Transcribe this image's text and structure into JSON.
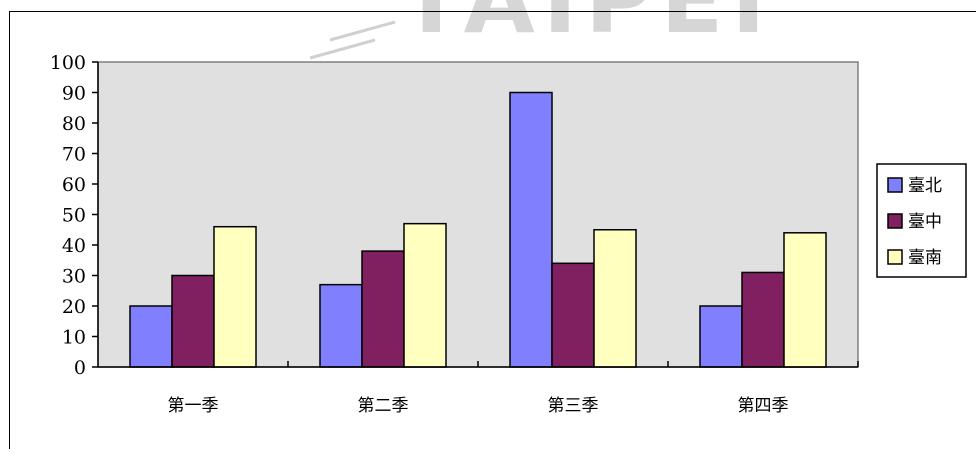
{
  "watermark": {
    "text": "TAIPEI"
  },
  "colors": {
    "plot_area": "#e0e0e0",
    "axis": "#000000",
    "grid_border": "#808080",
    "series_taipei": "#8080ff",
    "series_taichung": "#802060",
    "series_tainan": "#ffffc0"
  },
  "chart_data": {
    "type": "bar",
    "categories": [
      "第一季",
      "第二季",
      "第三季",
      "第四季"
    ],
    "series": [
      {
        "name": "臺北",
        "values": [
          20,
          27,
          90,
          20
        ],
        "color": "#8080ff"
      },
      {
        "name": "臺中",
        "values": [
          30,
          38,
          34,
          31
        ],
        "color": "#802060"
      },
      {
        "name": "臺南",
        "values": [
          46,
          47,
          45,
          44
        ],
        "color": "#ffffc0"
      }
    ],
    "y_ticks": [
      0,
      10,
      20,
      30,
      40,
      50,
      60,
      70,
      80,
      90,
      100
    ],
    "ylim": [
      0,
      100
    ],
    "grid": false,
    "legend": "right",
    "title": "",
    "xlabel": "",
    "ylabel": ""
  }
}
